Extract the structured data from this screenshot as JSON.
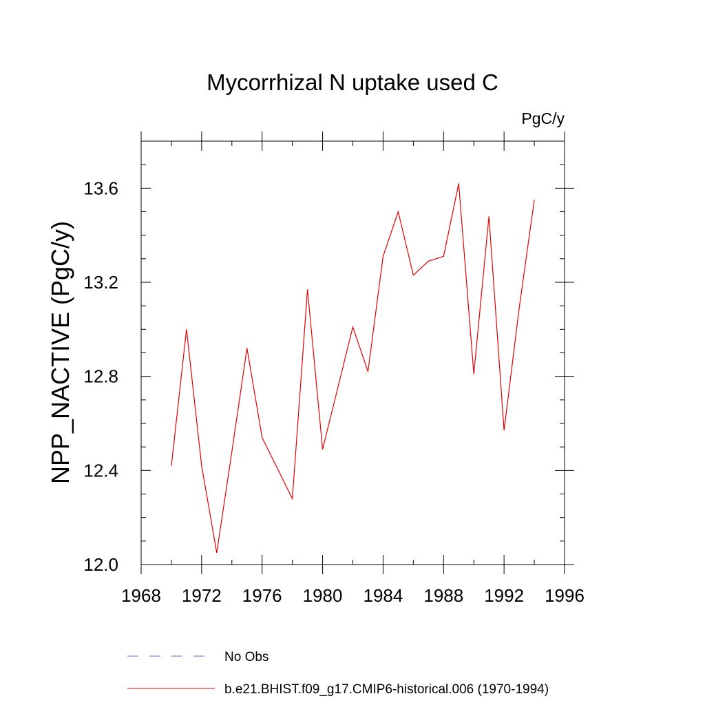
{
  "chart_data": {
    "type": "line",
    "title": "Mycorrhizal N uptake used C",
    "units_label": "PgC/y",
    "ylabel": "NPP_NACTIVE  (PgC/y)",
    "xlabel": "",
    "xlim": [
      1968,
      1996
    ],
    "ylim": [
      12.0,
      13.8
    ],
    "x_ticks": [
      1968,
      1972,
      1976,
      1980,
      1984,
      1988,
      1992,
      1996
    ],
    "y_ticks": [
      12.0,
      12.4,
      12.8,
      13.2,
      13.6
    ],
    "x_minor_step": 2,
    "y_minor_step": 0.1,
    "grid": false,
    "series": [
      {
        "name": "b.e21.BHIST.f09_g17.CMIP6-historical.006 (1970-1994)",
        "color": "#e00000",
        "style": "solid",
        "x": [
          1970,
          1971,
          1972,
          1973,
          1974,
          1975,
          1976,
          1977,
          1978,
          1979,
          1980,
          1981,
          1982,
          1983,
          1984,
          1985,
          1986,
          1987,
          1988,
          1989,
          1990,
          1991,
          1992,
          1993,
          1994
        ],
        "values": [
          12.42,
          13.0,
          12.42,
          12.05,
          12.48,
          12.92,
          12.54,
          12.41,
          12.28,
          13.17,
          12.49,
          12.75,
          13.01,
          12.82,
          13.31,
          13.5,
          13.23,
          13.29,
          13.31,
          13.62,
          12.81,
          13.48,
          12.57,
          13.09,
          13.55
        ]
      }
    ],
    "legend": {
      "position": "bottom",
      "entries": [
        {
          "label": "No Obs",
          "color": "#6a6ad0",
          "style": "dashed"
        },
        {
          "label": "b.e21.BHIST.f09_g17.CMIP6-historical.006 (1970-1994)",
          "color": "#e00000",
          "style": "solid"
        }
      ]
    }
  }
}
